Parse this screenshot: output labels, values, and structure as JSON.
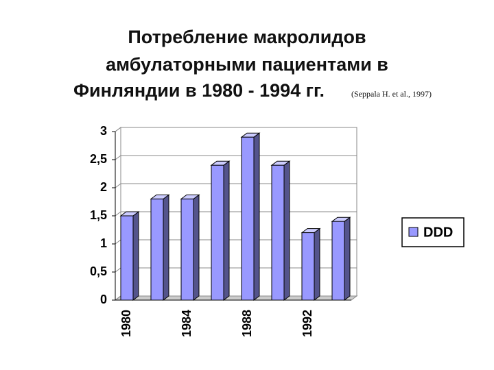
{
  "chart_data": {
    "type": "bar",
    "title": [
      "Потребление макролидов",
      "амбулаторными пациентами в",
      "Финляндии в 1980 - 1994 гг."
    ],
    "source": "(Seppala H. et al., 1997)",
    "categories": [
      "1980",
      null,
      "1984",
      null,
      "1988",
      null,
      "1992",
      null
    ],
    "series": [
      {
        "name": "DDD",
        "color": "#9999ff",
        "values": [
          1.5,
          1.8,
          1.8,
          2.4,
          2.9,
          2.4,
          1.2,
          1.4
        ]
      }
    ],
    "ylim": [
      0,
      3
    ],
    "yticks": [
      0,
      {
        "value": 0.5,
        "label": "0,5"
      },
      1,
      {
        "value": 1.5,
        "label": "1,5"
      },
      2,
      {
        "value": 2.5,
        "label": "2,5"
      },
      3
    ],
    "grid": true,
    "legend": "right"
  }
}
